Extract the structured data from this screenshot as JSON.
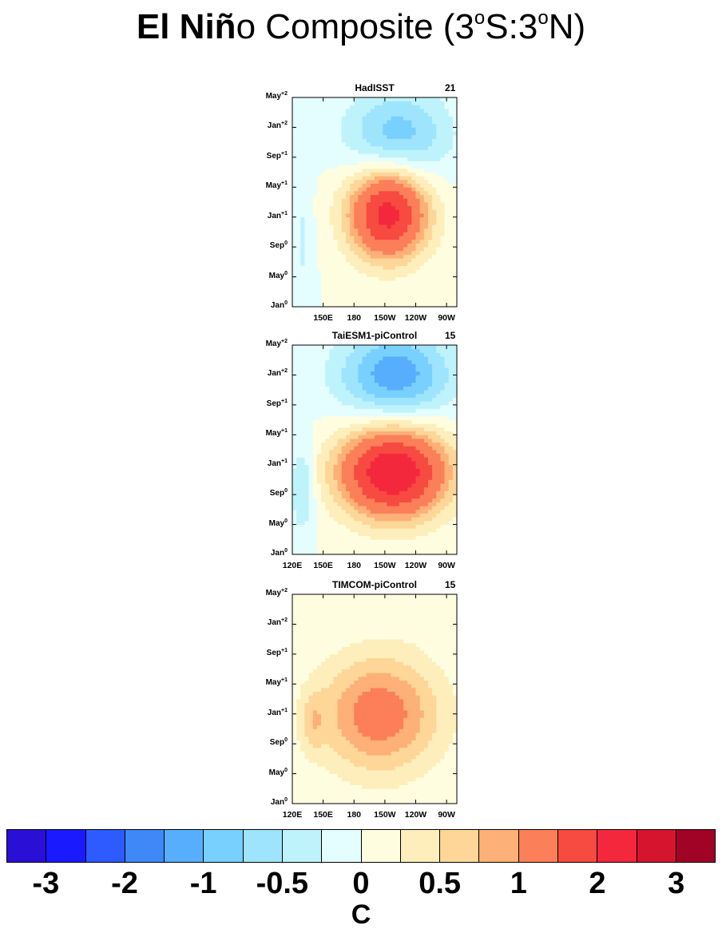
{
  "title": {
    "bold": "El Niñ",
    "rest": "o Composite (3",
    "sup1": "o",
    "mid": "S:3",
    "sup2": "o",
    "end": "N)"
  },
  "chart_data": {
    "type": "heatmap",
    "description_of_axes": "Hovmoller: longitude along equator (x) vs. time (y)",
    "y_ticks": [
      {
        "label": "Jan",
        "sup": "0"
      },
      {
        "label": "May",
        "sup": "0"
      },
      {
        "label": "Sep",
        "sup": "0"
      },
      {
        "label": "Jan",
        "sup": "+1"
      },
      {
        "label": "May",
        "sup": "+1"
      },
      {
        "label": "Sep",
        "sup": "+1"
      },
      {
        "label": "Jan",
        "sup": "+2"
      },
      {
        "label": "May",
        "sup": "+2"
      }
    ],
    "x_range": [
      120,
      280
    ],
    "panels": [
      {
        "title": "HadISST",
        "count": "21",
        "x_ticks": [
          {
            "lon": 150,
            "label": "150E"
          },
          {
            "lon": 180,
            "label": "180"
          },
          {
            "lon": 210,
            "label": "150W"
          },
          {
            "lon": 240,
            "label": "120W"
          },
          {
            "lon": 270,
            "label": "90W"
          }
        ],
        "warm": {
          "lon": 213,
          "month": 12.5,
          "amp": 2.2,
          "slon": 38,
          "smonth": 6
        },
        "cool": {
          "lon": 222,
          "month": 23,
          "amp": -0.9,
          "slon": 50,
          "smonth": 6
        },
        "west": {
          "lon": 130,
          "month": 9,
          "amp": -0.3,
          "slon": 10,
          "smonth": 9
        }
      },
      {
        "title": "TaiESM1-piControl",
        "count": "15",
        "x_ticks": [
          {
            "lon": 120,
            "label": "120E"
          },
          {
            "lon": 150,
            "label": "150E"
          },
          {
            "lon": 180,
            "label": "180"
          },
          {
            "lon": 210,
            "label": "150W"
          },
          {
            "lon": 240,
            "label": "120W"
          },
          {
            "lon": 270,
            "label": "90W"
          }
        ],
        "warm": {
          "lon": 218,
          "month": 11,
          "amp": 2.5,
          "slon": 52,
          "smonth": 6
        },
        "cool": {
          "lon": 220,
          "month": 24,
          "amp": -1.2,
          "slon": 55,
          "smonth": 6
        },
        "west": {
          "lon": 130,
          "month": 9,
          "amp": -0.6,
          "slon": 12,
          "smonth": 6
        }
      },
      {
        "title": "TIMCOM-piControl",
        "count": "15",
        "x_ticks": [
          {
            "lon": 120,
            "label": "120E"
          },
          {
            "lon": 150,
            "label": "150E"
          },
          {
            "lon": 180,
            "label": "180"
          },
          {
            "lon": 210,
            "label": "150W"
          },
          {
            "lon": 240,
            "label": "120W"
          },
          {
            "lon": 270,
            "label": "90W"
          }
        ],
        "warm": {
          "lon": 205,
          "month": 12,
          "amp": 1.2,
          "slon": 60,
          "smonth": 8
        },
        "cool": {
          "lon": 250,
          "month": 25,
          "amp": 0.05,
          "slon": 30,
          "smonth": 4
        },
        "west": {
          "lon": 140,
          "month": 11,
          "amp": 0.4,
          "slon": 12,
          "smonth": 4
        }
      }
    ],
    "colorbar": {
      "levels": [
        -3,
        -2.5,
        -2,
        -1.5,
        -1,
        -0.75,
        -0.5,
        -0.25,
        0,
        0.25,
        0.5,
        0.75,
        1,
        1.5,
        2,
        2.5,
        3
      ],
      "colors": [
        "#2a0fd6",
        "#1a1aff",
        "#2d5bff",
        "#3f88f7",
        "#57aefc",
        "#78d0ff",
        "#9ee4fc",
        "#bef3fb",
        "#e4fdfe",
        "#fffde0",
        "#fdeebb",
        "#fdd698",
        "#fdb077",
        "#fb7f59",
        "#f74a40",
        "#f4283c",
        "#d5152e",
        "#a00326"
      ],
      "labels": [
        {
          "text": "-3",
          "at": 1
        },
        {
          "text": "-2",
          "at": 3
        },
        {
          "text": "-1",
          "at": 5
        },
        {
          "text": "-0.5",
          "at": 7
        },
        {
          "text": "0",
          "at": 9
        },
        {
          "text": "0.5",
          "at": 11
        },
        {
          "text": "1",
          "at": 13
        },
        {
          "text": "2",
          "at": 15
        },
        {
          "text": "3",
          "at": 17
        }
      ],
      "unit": "C"
    }
  }
}
